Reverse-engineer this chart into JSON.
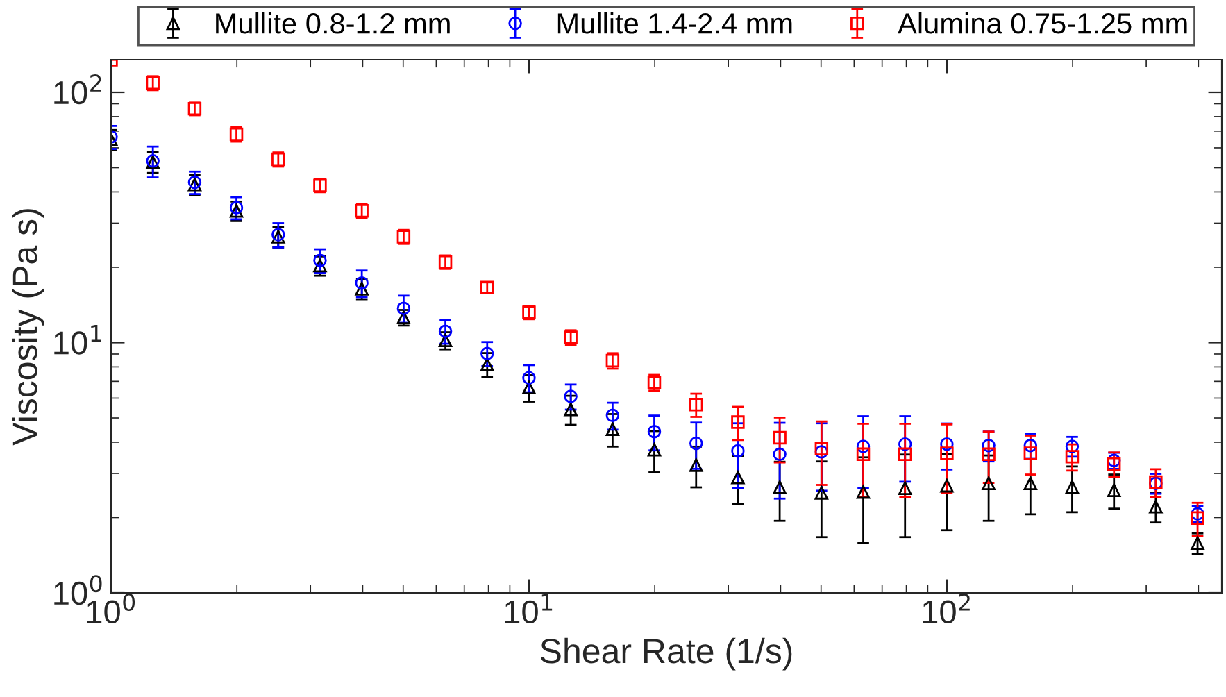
{
  "chart_data": {
    "type": "scatter",
    "xlabel": "Shear Rate (1/s)",
    "ylabel": "Viscosity (Pa s)",
    "log": "xy",
    "grid": false,
    "legend": "top",
    "line_style": "none",
    "x": [
      1,
      1.259,
      1.585,
      1.995,
      2.512,
      3.162,
      3.981,
      5.012,
      6.31,
      7.943,
      10,
      12.59,
      15.85,
      19.95,
      25.12,
      31.62,
      39.81,
      50.12,
      63.1,
      79.43,
      100,
      125.9,
      158.5,
      199.5,
      251.2,
      316.2,
      398.1
    ],
    "xlim": [
      1,
      455
    ],
    "xticks": [
      {
        "value": 1,
        "label": "10$^{0}$"
      },
      {
        "value": 10,
        "label": "10$^{1}$"
      },
      {
        "value": 100,
        "label": "10$^{2}$"
      }
    ],
    "ylim": [
      1,
      135
    ],
    "yticks": [
      {
        "value": 1,
        "label": "10$^{0}$"
      },
      {
        "value": 10,
        "label": "10$^{1}$"
      },
      {
        "value": 100,
        "label": "10$^{2}$"
      }
    ],
    "series": [
      {
        "name": "Mullite 0.8-1.2 mm",
        "color": "#000000",
        "marker": "triangle",
        "values": [
          64.7,
          52.6,
          42.8,
          33.6,
          26.5,
          20.3,
          16.4,
          12.6,
          10.2,
          8.18,
          6.61,
          5.41,
          4.51,
          3.73,
          3.24,
          2.89,
          2.64,
          2.51,
          2.53,
          2.62,
          2.68,
          2.74,
          2.74,
          2.65,
          2.57,
          2.21,
          1.58
        ],
        "errors": [
          6,
          5,
          4,
          3,
          2.5,
          1.8,
          1.5,
          0.9,
          0.8,
          0.9,
          0.8,
          0.72,
          0.67,
          0.7,
          0.6,
          0.63,
          0.7,
          0.84,
          0.95,
          0.95,
          0.9,
          0.8,
          0.68,
          0.55,
          0.4,
          0.3,
          0.15
        ]
      },
      {
        "name": "Mullite 1.4-2.4 mm",
        "color": "#0000ff",
        "marker": "circle",
        "values": [
          66.4,
          53.2,
          43.7,
          34.6,
          27.0,
          21.3,
          17.3,
          13.7,
          11.1,
          9.05,
          7.23,
          6.1,
          5.12,
          4.41,
          3.96,
          3.69,
          3.58,
          3.66,
          3.85,
          3.93,
          3.93,
          3.88,
          3.88,
          3.85,
          3.38,
          2.74,
          2.07
        ],
        "errors": [
          7,
          7.5,
          4.5,
          3.5,
          3,
          2.3,
          2.1,
          1.7,
          1.2,
          1.0,
          0.9,
          0.7,
          0.63,
          0.7,
          0.83,
          1.07,
          1.2,
          1.1,
          1.23,
          1.15,
          0.82,
          0.53,
          0.45,
          0.35,
          0.25,
          0.25,
          0.15
        ]
      },
      {
        "name": "Alumina 0.75-1.25 mm",
        "color": "#ff0000",
        "marker": "square",
        "values": [
          135,
          109,
          86,
          68,
          54,
          42.4,
          33.6,
          26.5,
          21.0,
          16.6,
          13.2,
          10.5,
          8.47,
          6.93,
          5.65,
          4.81,
          4.17,
          3.77,
          3.58,
          3.58,
          3.61,
          3.58,
          3.61,
          3.5,
          3.27,
          2.77,
          1.99
        ],
        "errors": [
          null,
          7,
          5,
          4.5,
          3.5,
          2.5,
          2.2,
          1.7,
          1.3,
          0.8,
          0.8,
          0.7,
          0.6,
          0.5,
          0.6,
          0.73,
          0.85,
          1.07,
          1.16,
          1.16,
          1.1,
          0.83,
          0.64,
          0.42,
          0.37,
          0.35,
          0.3
        ]
      }
    ]
  }
}
